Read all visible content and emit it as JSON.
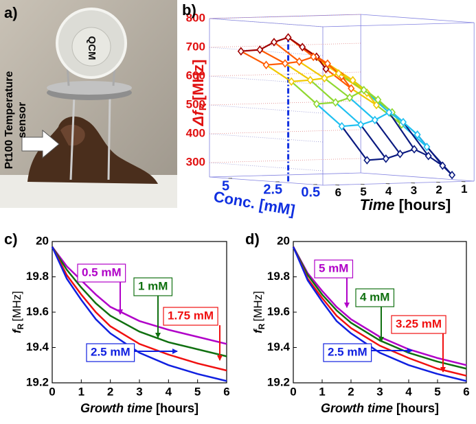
{
  "panel_a": {
    "panel_label": "a)",
    "qcm_label": "QCM",
    "sensor_label_line1": "Pt100 Temperature",
    "sensor_label_line2": "sensor"
  },
  "chart_data": [
    {
      "type": "waterfall3d",
      "panel_label": "b)",
      "zlabel": {
        "symbol": "Δf",
        "subscript": "R",
        "unit": "[MHz]"
      },
      "conc_label": "Conc. [mM]",
      "time_label": {
        "italic": "Time",
        "unit": "[hours]"
      },
      "concentrations": [
        0.5,
        1,
        1.75,
        2.5,
        3.25,
        4,
        5
      ],
      "zlim": [
        250,
        800
      ],
      "zticks": [
        300,
        400,
        500,
        600,
        700,
        800
      ],
      "conclim": [
        0,
        6
      ],
      "concticks": [
        5,
        2.5,
        0.5
      ],
      "timelim": [
        0.5,
        6.5
      ],
      "timeticks": [
        6,
        5,
        4,
        3,
        2,
        1
      ],
      "highlight_conc": 2.5,
      "series": [
        {
          "time": 6,
          "color": "#a00000",
          "values": [
            650,
            690,
            720,
            750,
            730,
            700,
            690
          ]
        },
        {
          "time": 5,
          "color": "#ff5a00",
          "values": [
            580,
            620,
            660,
            680,
            660,
            650,
            640
          ]
        },
        {
          "time": 4,
          "color": "#f0c800",
          "values": [
            520,
            560,
            600,
            620,
            600,
            590,
            580
          ]
        },
        {
          "time": 3,
          "color": "#90d830",
          "values": [
            450,
            490,
            530,
            560,
            530,
            510,
            500
          ]
        },
        {
          "time": 2,
          "color": "#20c0f0",
          "values": [
            370,
            410,
            450,
            480,
            450,
            430,
            420
          ]
        },
        {
          "time": 1,
          "color": "#0a1a80",
          "values": [
            270,
            300,
            330,
            350,
            330,
            310,
            300
          ]
        }
      ]
    },
    {
      "type": "line",
      "panel_label": "c)",
      "xlabel": {
        "italic": "Growth time",
        "unit": "[hours]"
      },
      "ylabel": {
        "symbol": "f",
        "subscript": "R",
        "unit": "[MHz]"
      },
      "x": [
        0,
        0.5,
        1,
        1.5,
        2,
        3,
        4,
        5,
        6
      ],
      "xlim": [
        0,
        6
      ],
      "xticks": [
        0,
        1,
        2,
        3,
        4,
        5,
        6
      ],
      "ylim": [
        19.2,
        20
      ],
      "yticks": [
        19.2,
        19.4,
        19.6,
        19.8,
        20
      ],
      "series": [
        {
          "name": "0.5 mM",
          "color": "#b000c8",
          "values": [
            19.97,
            19.86,
            19.78,
            19.7,
            19.63,
            19.55,
            19.5,
            19.46,
            19.42
          ]
        },
        {
          "name": "1 mM",
          "color": "#107010",
          "values": [
            19.97,
            19.84,
            19.74,
            19.65,
            19.58,
            19.49,
            19.43,
            19.39,
            19.35
          ]
        },
        {
          "name": "1.75 mM",
          "color": "#f01010",
          "values": [
            19.97,
            19.81,
            19.7,
            19.6,
            19.52,
            19.42,
            19.36,
            19.31,
            19.27
          ]
        },
        {
          "name": "2.5 mM",
          "color": "#1020e0",
          "values": [
            19.97,
            19.79,
            19.67,
            19.56,
            19.48,
            19.37,
            19.3,
            19.25,
            19.21
          ]
        }
      ]
    },
    {
      "type": "line",
      "panel_label": "d)",
      "xlabel": {
        "italic": "Growth time",
        "unit": "[hours]"
      },
      "ylabel": {
        "symbol": "f",
        "subscript": "R",
        "unit": "[MHz]"
      },
      "x": [
        0,
        0.5,
        1,
        1.5,
        2,
        3,
        4,
        5,
        6
      ],
      "xlim": [
        0,
        6
      ],
      "xticks": [
        0,
        1,
        2,
        3,
        4,
        5,
        6
      ],
      "ylim": [
        19.2,
        20
      ],
      "yticks": [
        19.2,
        19.4,
        19.6,
        19.8,
        20
      ],
      "series": [
        {
          "name": "5 mM",
          "color": "#b000c8",
          "values": [
            19.97,
            19.82,
            19.72,
            19.63,
            19.56,
            19.46,
            19.39,
            19.34,
            19.3
          ]
        },
        {
          "name": "4 mM",
          "color": "#107010",
          "values": [
            19.97,
            19.81,
            19.7,
            19.61,
            19.54,
            19.44,
            19.37,
            19.32,
            19.28
          ]
        },
        {
          "name": "3.25 mM",
          "color": "#f01010",
          "values": [
            19.97,
            19.79,
            19.68,
            19.58,
            19.51,
            19.41,
            19.34,
            19.28,
            19.24
          ]
        },
        {
          "name": "2.5 mM",
          "color": "#1020e0",
          "values": [
            19.97,
            19.78,
            19.66,
            19.55,
            19.48,
            19.37,
            19.3,
            19.25,
            19.21
          ]
        }
      ]
    }
  ]
}
